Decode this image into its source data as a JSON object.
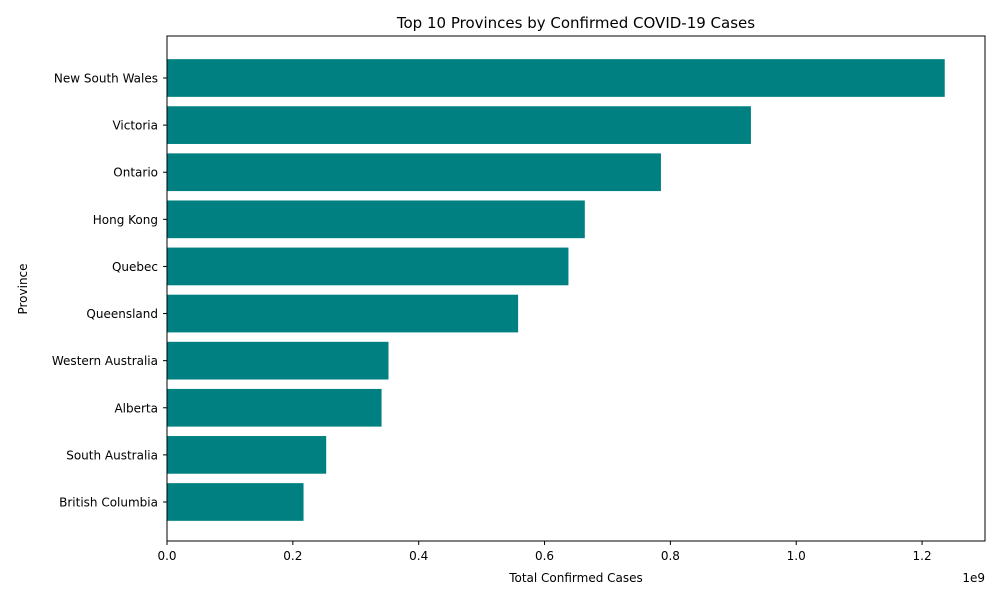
{
  "chart_data": {
    "type": "bar",
    "orientation": "horizontal",
    "title": "Top 10 Provinces by Confirmed COVID-19 Cases",
    "xlabel": "Total Confirmed Cases",
    "ylabel": "Province",
    "x_scale_note": "1e9",
    "xlim": [
      0,
      1300000000
    ],
    "x_tick_values": [
      0,
      200000000,
      400000000,
      600000000,
      800000000,
      1000000000,
      1200000000
    ],
    "x_tick_labels": [
      "0.0",
      "0.2",
      "0.4",
      "0.6",
      "0.8",
      "1.0",
      "1.2"
    ],
    "grid": false,
    "bar_color": "#008080",
    "categories": [
      "New South Wales",
      "Victoria",
      "Ontario",
      "Hong Kong",
      "Quebec",
      "Queensland",
      "Western Australia",
      "Alberta",
      "South Australia",
      "British Columbia"
    ],
    "values": [
      1236000000,
      928000000,
      785000000,
      664000000,
      638000000,
      558000000,
      352000000,
      341000000,
      253000000,
      217000000
    ]
  }
}
